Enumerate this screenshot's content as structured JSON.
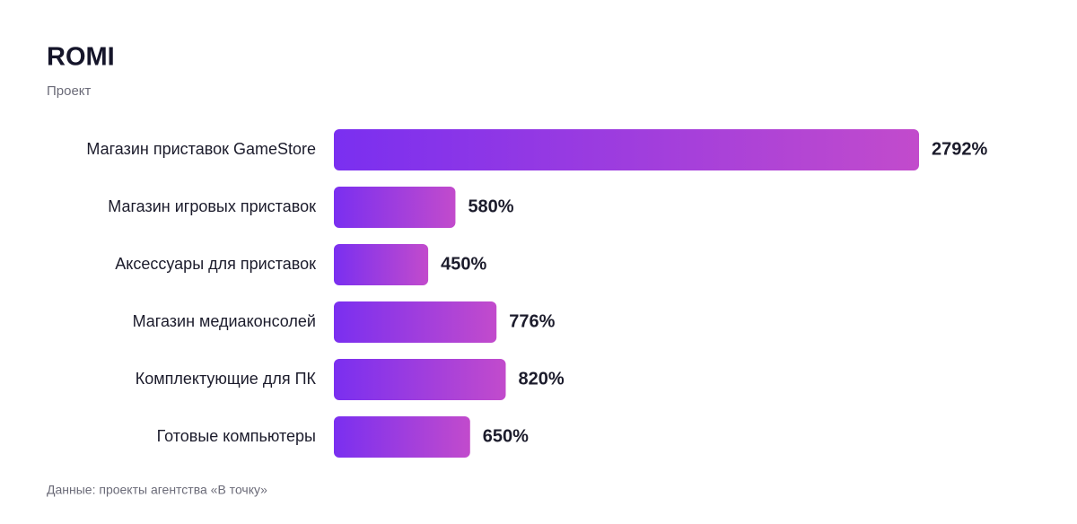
{
  "chart_data": {
    "type": "bar",
    "orientation": "horizontal",
    "title": "ROMI",
    "subtitle": "Проект",
    "categories": [
      "Магазин приставок GameStore",
      "Магазин игровых приставок",
      "Аксессуары для приставок",
      "Магазин медиаконсолей",
      "Комплектующие для ПК",
      "Готовые компьютеры"
    ],
    "values": [
      2792,
      580,
      450,
      776,
      820,
      650
    ],
    "value_labels": [
      "2792%",
      "580%",
      "450%",
      "776%",
      "820%",
      "650%"
    ],
    "gradient": [
      "#7a2ff0",
      "#c24bcc"
    ],
    "source": "Данные: проекты агентства «В точку»"
  }
}
